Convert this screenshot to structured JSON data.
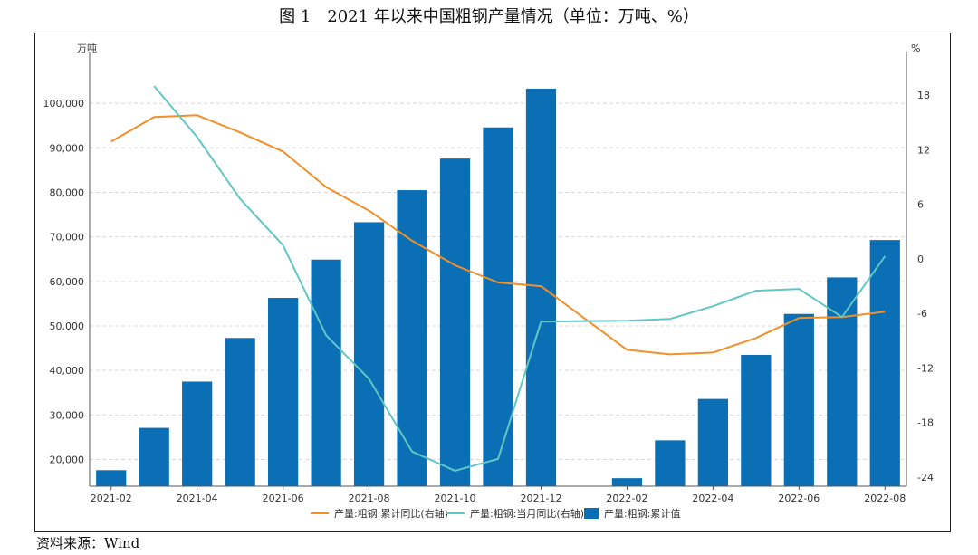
{
  "figure": {
    "title": "图 1　2021 年以来中国粗钢产量情况（单位：万吨、%）",
    "source": "资料来源：Wind"
  },
  "colors": {
    "bar": "#0a6fb5",
    "cumulative_yoy": "#f0902a",
    "monthly_yoy": "#62c6c4",
    "grid": "#d8d8d8",
    "axis_text": "#333333"
  },
  "chart_data": {
    "type": "bar",
    "left_unit_label": "万吨",
    "right_unit_label": "%",
    "x": [
      "2021-02",
      "2021-03",
      "2021-04",
      "2021-05",
      "2021-06",
      "2021-07",
      "2021-08",
      "2021-09",
      "2021-10",
      "2021-11",
      "2021-12",
      "2022-01",
      "2022-02",
      "2022-03",
      "2022-04",
      "2022-05",
      "2022-06",
      "2022-07",
      "2022-08"
    ],
    "x_tick_labels": [
      "2021-02",
      "2021-04",
      "2021-06",
      "2021-08",
      "2021-10",
      "2021-12",
      "2022-02",
      "2022-04",
      "2022-06",
      "2022-08"
    ],
    "x_tick_indices": [
      0,
      2,
      4,
      6,
      8,
      10,
      12,
      14,
      16,
      18
    ],
    "ylim_left": [
      14000,
      110000
    ],
    "yticks_left": [
      20000,
      30000,
      40000,
      50000,
      60000,
      70000,
      80000,
      90000,
      100000
    ],
    "yticks_left_labels": [
      "20,000",
      "30,000",
      "40,000",
      "50,000",
      "60,000",
      "70,000",
      "80,000",
      "90,000",
      "100,000"
    ],
    "ylim_right": [
      -25,
      22
    ],
    "yticks_right": [
      -24,
      -18,
      -12,
      -6,
      0,
      6,
      12,
      18
    ],
    "yticks_right_labels": [
      "-24",
      "-18",
      "-12",
      "-6",
      "0",
      "6",
      "12",
      "18"
    ],
    "grid": true,
    "series": [
      {
        "name": "产量:粗钢:累计同比(右轴)",
        "type": "line",
        "axis": "right",
        "color_key": "cumulative_yoy",
        "values": [
          12.9,
          15.6,
          15.8,
          13.9,
          11.8,
          7.9,
          5.3,
          2.0,
          -0.7,
          -2.6,
          -3.0,
          null,
          -10.0,
          -10.5,
          -10.3,
          -8.7,
          -6.5,
          -6.4,
          -5.8
        ]
      },
      {
        "name": "产量:粗钢:当月同比(右轴)",
        "type": "line",
        "axis": "right",
        "color_key": "monthly_yoy",
        "values": [
          null,
          19.0,
          13.4,
          6.6,
          1.5,
          -8.4,
          -13.2,
          -21.2,
          -23.3,
          -22.0,
          -6.9,
          null,
          -6.8,
          -6.6,
          -5.2,
          -3.5,
          -3.3,
          -6.4,
          0.3
        ]
      },
      {
        "name": "产量:粗钢:累计值",
        "type": "bar",
        "axis": "left",
        "color_key": "bar",
        "values": [
          17600,
          27100,
          37500,
          47300,
          56300,
          64900,
          73300,
          80500,
          87600,
          94600,
          103300,
          null,
          15800,
          24300,
          33600,
          43500,
          52700,
          60900,
          69300
        ]
      }
    ],
    "legend_position": "bottom-center"
  }
}
